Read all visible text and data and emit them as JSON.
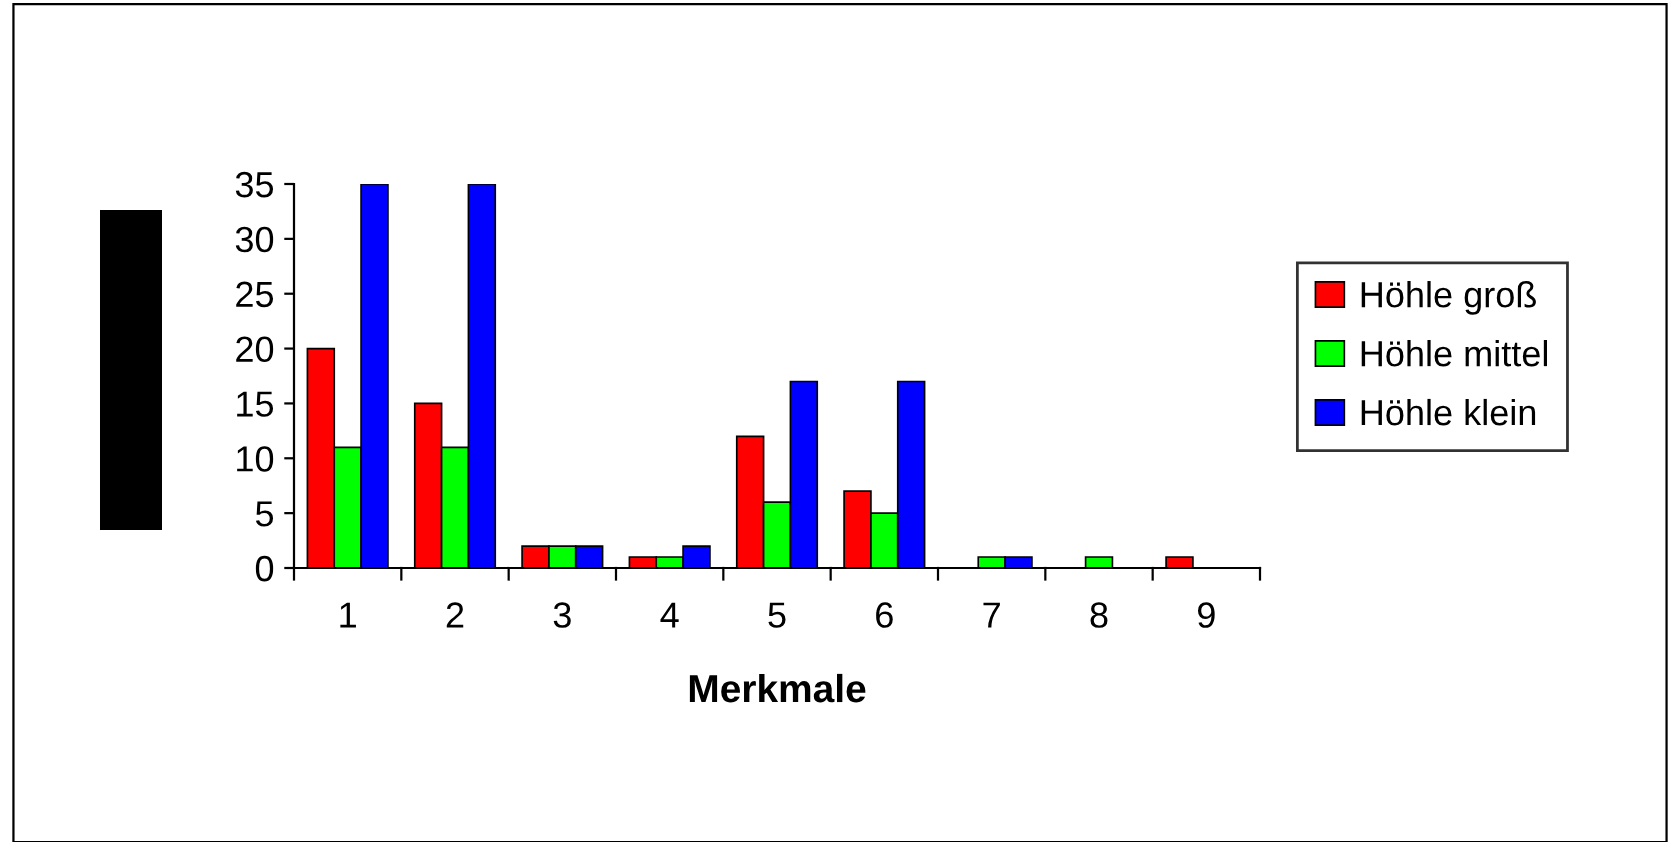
{
  "chart_data": {
    "type": "bar",
    "xlabel": "Merkmale",
    "categories": [
      "1",
      "2",
      "3",
      "4",
      "5",
      "6",
      "7",
      "8",
      "9"
    ],
    "series": [
      {
        "name": "Höhle groß",
        "color": "#ff0000",
        "values": [
          20,
          15,
          2,
          1,
          12,
          7,
          null,
          null,
          1
        ]
      },
      {
        "name": "Höhle mittel",
        "color": "#00ff00",
        "values": [
          11,
          11,
          2,
          1,
          6,
          5,
          1,
          1,
          null
        ]
      },
      {
        "name": "Höhle klein",
        "color": "#0000ff",
        "values": [
          35,
          35,
          2,
          2,
          17,
          17,
          1,
          null,
          null
        ]
      }
    ],
    "ylim": [
      0,
      35
    ],
    "yticks": [
      0,
      5,
      10,
      15,
      20,
      25,
      30,
      35
    ],
    "grid": false,
    "legend": "right"
  }
}
